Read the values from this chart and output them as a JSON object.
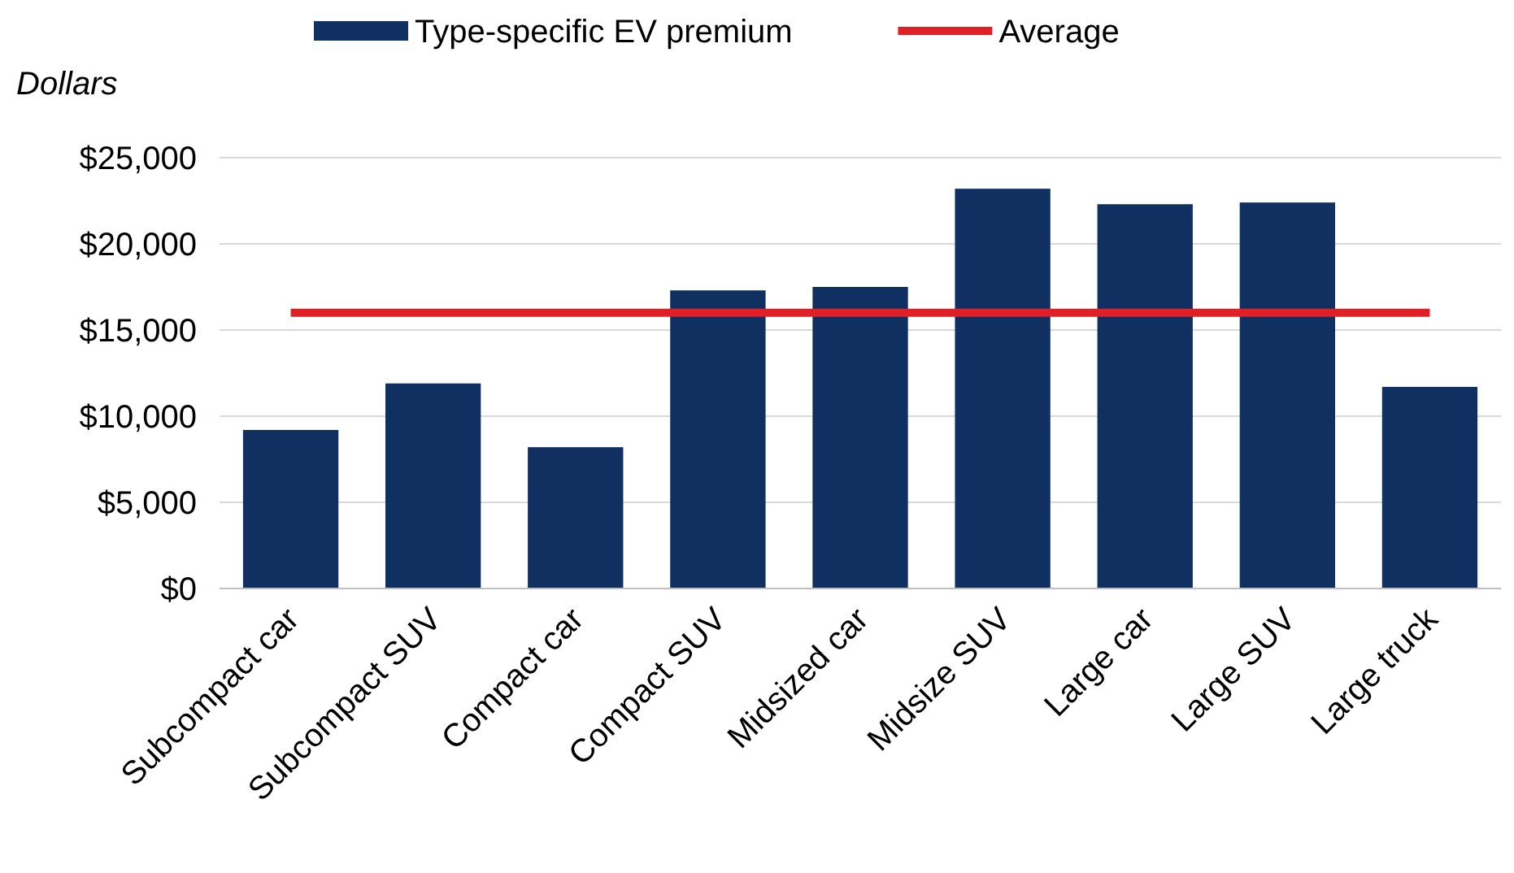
{
  "chart_data": {
    "type": "bar",
    "ylabel": "Dollars",
    "categories": [
      "Subcompact car",
      "Subcompact SUV",
      "Compact car",
      "Compact SUV",
      "Midsized car",
      "Midsize SUV",
      "Large car",
      "Large SUV",
      "Large truck"
    ],
    "series": [
      {
        "name": "Type-specific EV premium",
        "color": "#0f3060",
        "values": [
          9200,
          11900,
          8200,
          17300,
          17500,
          23200,
          22300,
          22400,
          11700
        ]
      },
      {
        "name": "Average",
        "type": "line",
        "color": "#e02027",
        "values": [
          16000,
          16000,
          16000,
          16000,
          16000,
          16000,
          16000,
          16000,
          16000
        ]
      }
    ],
    "ylim": [
      0,
      25000
    ],
    "yticks": [
      {
        "value": 0,
        "label": "$0"
      },
      {
        "value": 5000,
        "label": "$5,000"
      },
      {
        "value": 10000,
        "label": "$10,000"
      },
      {
        "value": 15000,
        "label": "$15,000"
      },
      {
        "value": 20000,
        "label": "$20,000"
      },
      {
        "value": 25000,
        "label": "$25,000"
      }
    ],
    "grid": "y",
    "legend": "top"
  }
}
